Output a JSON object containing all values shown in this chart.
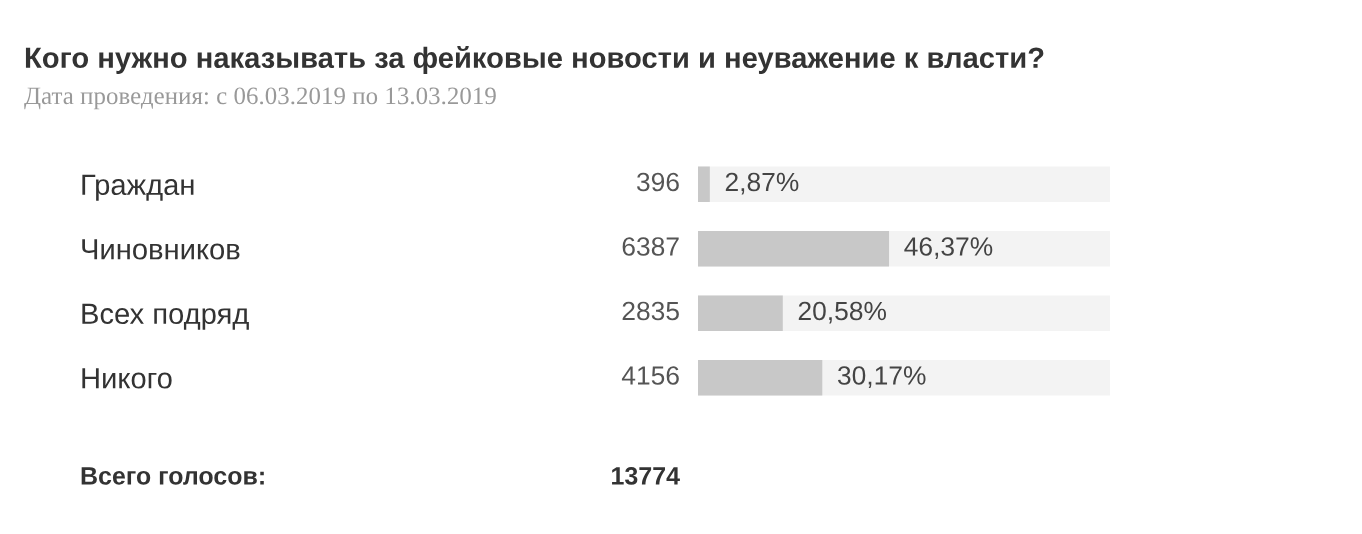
{
  "chart_data": {
    "type": "bar",
    "orientation": "horizontal",
    "title": "Кого нужно наказывать за фейковые новости и неуважение к власти?",
    "subtitle": "Дата проведения: с 06.03.2019 по 13.03.2019",
    "categories": [
      "Граждан",
      "Чиновников",
      "Всех подряд",
      "Никого"
    ],
    "series": [
      {
        "color": "#c8c8c8",
        "values": [
          2.87,
          46.37,
          20.58,
          30.17
        ],
        "value_labels": [
          "2,87%",
          "46,37%",
          "20,58%",
          "30,17%"
        ]
      }
    ],
    "xlim": [
      0,
      100
    ],
    "annotations": [
      "396",
      "6387",
      "2835",
      "4156",
      "Всего голосов:",
      "13774"
    ]
  }
}
